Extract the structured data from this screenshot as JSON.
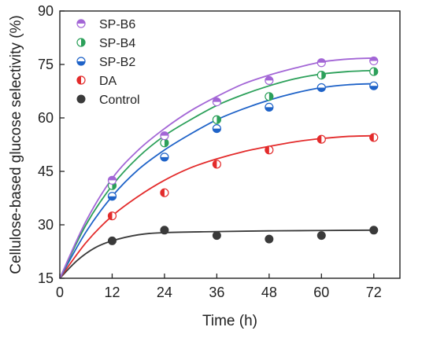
{
  "chart_data": {
    "type": "scatter",
    "title": "",
    "xlabel": "Time (h)",
    "ylabel": "Cellulose-based glucose selectivity (%)",
    "xlim": [
      0,
      78
    ],
    "ylim": [
      15,
      90
    ],
    "xticks": [
      "0",
      "12",
      "24",
      "36",
      "48",
      "60",
      "72"
    ],
    "yticks": [
      "15",
      "30",
      "45",
      "60",
      "75",
      "90"
    ],
    "grid": false,
    "legend_position": "top-left",
    "series": [
      {
        "name": "SP-B6",
        "color": "#a366d6",
        "points": [
          [
            12,
            42.5
          ],
          [
            24,
            55
          ],
          [
            36,
            64.5
          ],
          [
            48,
            70.5
          ],
          [
            60,
            75.5
          ],
          [
            72,
            76
          ]
        ],
        "fit": [
          [
            0,
            15
          ],
          [
            6,
            31
          ],
          [
            12,
            43
          ],
          [
            18,
            51
          ],
          [
            24,
            57
          ],
          [
            30,
            62
          ],
          [
            36,
            66
          ],
          [
            42,
            69.5
          ],
          [
            48,
            72
          ],
          [
            54,
            74
          ],
          [
            60,
            75.7
          ],
          [
            66,
            76.5
          ],
          [
            72,
            76.8
          ]
        ]
      },
      {
        "name": "SP-B4",
        "color": "#2ca05a",
        "points": [
          [
            12,
            41
          ],
          [
            24,
            53
          ],
          [
            36,
            59.5
          ],
          [
            48,
            66
          ],
          [
            60,
            72
          ],
          [
            72,
            73
          ]
        ],
        "fit": [
          [
            0,
            15
          ],
          [
            6,
            30
          ],
          [
            12,
            41
          ],
          [
            18,
            49
          ],
          [
            24,
            55
          ],
          [
            30,
            59.5
          ],
          [
            36,
            63.5
          ],
          [
            42,
            66.5
          ],
          [
            48,
            69
          ],
          [
            54,
            71
          ],
          [
            60,
            72.3
          ],
          [
            66,
            73
          ],
          [
            72,
            73.3
          ]
        ]
      },
      {
        "name": "SP-B2",
        "color": "#1f63c8",
        "points": [
          [
            12,
            38
          ],
          [
            24,
            49
          ],
          [
            36,
            57
          ],
          [
            48,
            63
          ],
          [
            60,
            68.5
          ],
          [
            72,
            69
          ]
        ],
        "fit": [
          [
            0,
            15
          ],
          [
            6,
            28
          ],
          [
            12,
            38
          ],
          [
            18,
            45.5
          ],
          [
            24,
            51
          ],
          [
            30,
            55.5
          ],
          [
            36,
            59.5
          ],
          [
            42,
            62.5
          ],
          [
            48,
            65
          ],
          [
            54,
            67
          ],
          [
            60,
            68.5
          ],
          [
            66,
            69.3
          ],
          [
            72,
            69.6
          ]
        ]
      },
      {
        "name": "DA",
        "color": "#e32b2b",
        "points": [
          [
            12,
            32.5
          ],
          [
            24,
            39
          ],
          [
            36,
            47
          ],
          [
            48,
            51
          ],
          [
            60,
            54
          ],
          [
            72,
            54.5
          ]
        ],
        "fit": [
          [
            0,
            15
          ],
          [
            6,
            25
          ],
          [
            12,
            32.5
          ],
          [
            18,
            38
          ],
          [
            24,
            42.5
          ],
          [
            30,
            46
          ],
          [
            36,
            48.5
          ],
          [
            42,
            50.5
          ],
          [
            48,
            52
          ],
          [
            54,
            53.3
          ],
          [
            60,
            54.2
          ],
          [
            66,
            54.8
          ],
          [
            72,
            55
          ]
        ]
      },
      {
        "name": "Control",
        "color": "#3a3a3a",
        "points": [
          [
            12,
            25.5
          ],
          [
            24,
            28.5
          ],
          [
            36,
            27
          ],
          [
            48,
            26
          ],
          [
            60,
            27
          ],
          [
            72,
            28.5
          ]
        ],
        "fit": [
          [
            0,
            15
          ],
          [
            4,
            20
          ],
          [
            8,
            23.5
          ],
          [
            12,
            25.5
          ],
          [
            18,
            27.2
          ],
          [
            24,
            27.8
          ],
          [
            36,
            28.1
          ],
          [
            48,
            28.3
          ],
          [
            60,
            28.4
          ],
          [
            72,
            28.5
          ]
        ]
      }
    ]
  }
}
